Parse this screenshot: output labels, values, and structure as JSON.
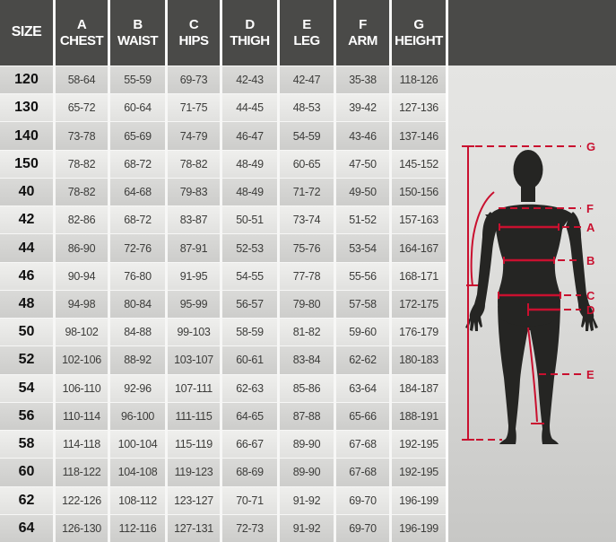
{
  "chart_data": {
    "type": "table",
    "title": "Garment size chart with body measurement diagram",
    "columns": [
      {
        "letter": "",
        "name": "SIZE"
      },
      {
        "letter": "A",
        "name": "CHEST"
      },
      {
        "letter": "B",
        "name": "WAIST"
      },
      {
        "letter": "C",
        "name": "HIPS"
      },
      {
        "letter": "D",
        "name": "THIGH"
      },
      {
        "letter": "E",
        "name": "LEG"
      },
      {
        "letter": "F",
        "name": "ARM"
      },
      {
        "letter": "G",
        "name": "HEIGHT"
      }
    ],
    "rows": [
      [
        "120",
        "58-64",
        "55-59",
        "69-73",
        "42-43",
        "42-47",
        "35-38",
        "118-126"
      ],
      [
        "130",
        "65-72",
        "60-64",
        "71-75",
        "44-45",
        "48-53",
        "39-42",
        "127-136"
      ],
      [
        "140",
        "73-78",
        "65-69",
        "74-79",
        "46-47",
        "54-59",
        "43-46",
        "137-146"
      ],
      [
        "150",
        "78-82",
        "68-72",
        "78-82",
        "48-49",
        "60-65",
        "47-50",
        "145-152"
      ],
      [
        "40",
        "78-82",
        "64-68",
        "79-83",
        "48-49",
        "71-72",
        "49-50",
        "150-156"
      ],
      [
        "42",
        "82-86",
        "68-72",
        "83-87",
        "50-51",
        "73-74",
        "51-52",
        "157-163"
      ],
      [
        "44",
        "86-90",
        "72-76",
        "87-91",
        "52-53",
        "75-76",
        "53-54",
        "164-167"
      ],
      [
        "46",
        "90-94",
        "76-80",
        "91-95",
        "54-55",
        "77-78",
        "55-56",
        "168-171"
      ],
      [
        "48",
        "94-98",
        "80-84",
        "95-99",
        "56-57",
        "79-80",
        "57-58",
        "172-175"
      ],
      [
        "50",
        "98-102",
        "84-88",
        "99-103",
        "58-59",
        "81-82",
        "59-60",
        "176-179"
      ],
      [
        "52",
        "102-106",
        "88-92",
        "103-107",
        "60-61",
        "83-84",
        "62-62",
        "180-183"
      ],
      [
        "54",
        "106-110",
        "92-96",
        "107-111",
        "62-63",
        "85-86",
        "63-64",
        "184-187"
      ],
      [
        "56",
        "110-114",
        "96-100",
        "111-115",
        "64-65",
        "87-88",
        "65-66",
        "188-191"
      ],
      [
        "58",
        "114-118",
        "100-104",
        "115-119",
        "66-67",
        "89-90",
        "67-68",
        "192-195"
      ],
      [
        "60",
        "118-122",
        "104-108",
        "119-123",
        "68-69",
        "89-90",
        "67-68",
        "192-195"
      ],
      [
        "62",
        "122-126",
        "108-112",
        "123-127",
        "70-71",
        "91-92",
        "69-70",
        "196-199"
      ],
      [
        "64",
        "126-130",
        "112-116",
        "127-131",
        "72-73",
        "91-92",
        "69-70",
        "196-199"
      ]
    ]
  },
  "figure": {
    "labels": [
      "G",
      "F",
      "A",
      "B",
      "C",
      "D",
      "E"
    ]
  },
  "colors": {
    "header_bg": "#4a4a48",
    "row_dark": "#d3d3d1",
    "row_light": "#eaeae8",
    "accent_red": "#c9102f",
    "silhouette": "#252523",
    "panel_bg_top": "#e5e5e3",
    "panel_bg_bottom": "#c7c7c5"
  }
}
